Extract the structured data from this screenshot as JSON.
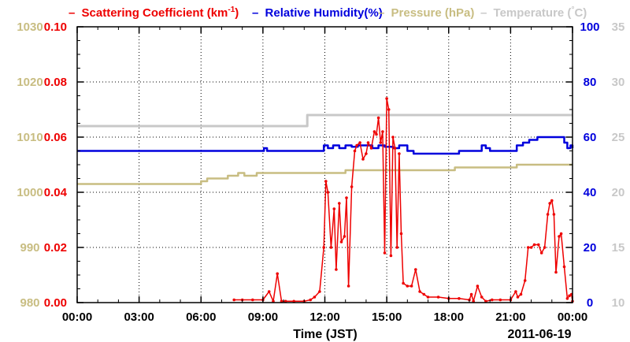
{
  "chart_data": {
    "type": "line",
    "xlabel": "Time (JST)",
    "date_label": "2011-06-19",
    "x_ticks": [
      "00:00",
      "03:00",
      "06:00",
      "09:00",
      "12:00",
      "15:00",
      "18:00",
      "21:00",
      "00:00"
    ],
    "x_range_hours": [
      0,
      24
    ],
    "grid": true,
    "legend_position": "top",
    "colors": {
      "scattering": "#ee0000",
      "humidity": "#0000dd",
      "pressure": "#c8bd82",
      "temperature": "#c8c8c8"
    },
    "axes": {
      "pressure": {
        "range": [
          980,
          1030
        ],
        "ticks": [
          "1030",
          "1020",
          "1010",
          "1000",
          "990",
          "980"
        ]
      },
      "scattering": {
        "range": [
          0,
          0.1
        ],
        "ticks": [
          "0.10",
          "0.08",
          "0.06",
          "0.04",
          "0.02",
          "0.00"
        ]
      },
      "humidity": {
        "range": [
          0,
          100
        ],
        "ticks": [
          "100",
          "80",
          "60",
          "40",
          "20",
          "0"
        ]
      },
      "temperature": {
        "range": [
          10,
          35
        ],
        "ticks": [
          "35",
          "30",
          "25",
          "20",
          "15",
          "10"
        ]
      }
    },
    "series": [
      {
        "name": "Scattering Coefficient (km-1)",
        "legend": {
          "dash": "–",
          "pre": "Scattering Coefficient (km",
          "sup": "-1",
          "post": ")"
        },
        "axis": "scattering",
        "x": [
          7.6,
          8.0,
          8.5,
          9.0,
          9.3,
          9.5,
          9.7,
          9.9,
          10.1,
          10.5,
          11.0,
          11.3,
          11.5,
          11.75,
          11.95,
          12.05,
          12.15,
          12.3,
          12.45,
          12.55,
          12.7,
          12.8,
          12.95,
          13.05,
          13.15,
          13.3,
          13.45,
          13.55,
          13.7,
          13.85,
          14.0,
          14.1,
          14.25,
          14.4,
          14.5,
          14.6,
          14.7,
          14.8,
          14.9,
          15.0,
          15.1,
          15.2,
          15.3,
          15.4,
          15.5,
          15.6,
          15.7,
          15.8,
          16.0,
          16.2,
          16.4,
          16.6,
          16.8,
          17.0,
          17.5,
          18.0,
          18.5,
          19.0,
          19.1,
          19.2,
          19.4,
          19.6,
          19.8,
          20.1,
          20.5,
          21.0,
          21.25,
          21.35,
          21.5,
          21.7,
          21.85,
          22.0,
          22.15,
          22.35,
          22.5,
          22.65,
          22.8,
          22.9,
          23.0,
          23.1,
          23.2,
          23.35,
          23.45,
          23.6,
          23.75,
          23.85,
          23.95,
          24.0
        ],
        "values": [
          0.001,
          0.001,
          0.001,
          0.001,
          0.004,
          0.0005,
          0.0105,
          0.0005,
          0.0005,
          0.0005,
          0.0005,
          0.001,
          0.002,
          0.004,
          0.02,
          0.044,
          0.04,
          0.02,
          0.034,
          0.012,
          0.036,
          0.022,
          0.024,
          0.038,
          0.006,
          0.042,
          0.055,
          0.057,
          0.058,
          0.052,
          0.054,
          0.058,
          0.056,
          0.062,
          0.061,
          0.067,
          0.058,
          0.062,
          0.018,
          0.074,
          0.07,
          0.017,
          0.06,
          0.056,
          0.02,
          0.054,
          0.025,
          0.007,
          0.006,
          0.006,
          0.012,
          0.004,
          0.003,
          0.002,
          0.002,
          0.0015,
          0.0015,
          0.001,
          0.003,
          0.0005,
          0.006,
          0.002,
          0.0005,
          0.001,
          0.001,
          0.001,
          0.004,
          0.002,
          0.003,
          0.008,
          0.02,
          0.02,
          0.021,
          0.021,
          0.018,
          0.02,
          0.032,
          0.036,
          0.037,
          0.032,
          0.011,
          0.024,
          0.025,
          0.013,
          0.0015,
          0.0025,
          0.003,
          0.0005
        ]
      },
      {
        "name": "Relative Humidity(%)",
        "legend": {
          "dash": "–",
          "pre": "Relative Humidity(%)",
          "sup": "",
          "post": ""
        },
        "axis": "humidity",
        "x": [
          0,
          9.0,
          9.05,
          9.15,
          9.2,
          11.8,
          11.95,
          12.15,
          12.4,
          12.7,
          13.0,
          13.3,
          13.6,
          14.0,
          14.3,
          14.6,
          14.9,
          15.3,
          15.6,
          16.0,
          16.3,
          16.8,
          17.5,
          18.5,
          19.5,
          19.6,
          19.8,
          20.0,
          21.0,
          21.3,
          21.6,
          21.9,
          22.3,
          22.8,
          23.2,
          23.4,
          23.6,
          23.75,
          23.9,
          24.0
        ],
        "values": [
          55,
          55,
          56,
          56,
          55,
          55,
          57,
          56,
          57,
          56,
          57,
          56.5,
          57,
          57,
          56,
          57,
          56.5,
          56,
          57,
          55,
          54,
          54,
          54,
          55,
          55,
          57,
          56,
          55,
          55,
          57,
          58,
          59,
          60,
          60,
          60,
          60,
          58,
          56,
          57,
          56
        ]
      },
      {
        "name": "Pressure (hPa)",
        "legend": {
          "dash": "–",
          "pre": "Pressure (hPa)",
          "sup": "",
          "post": ""
        },
        "axis": "pressure",
        "x": [
          0,
          5.8,
          6.0,
          6.3,
          6.7,
          7.3,
          7.6,
          7.8,
          8.1,
          8.5,
          8.7,
          9.1,
          9.6,
          13.0,
          18.0,
          18.3,
          21.0,
          21.3,
          24.0
        ],
        "values": [
          1001.5,
          1001.5,
          1002,
          1002.5,
          1002.5,
          1003,
          1003,
          1003.5,
          1003,
          1003,
          1003.5,
          1003.5,
          1003.5,
          1004,
          1004,
          1004.5,
          1004.5,
          1005,
          1005
        ]
      },
      {
        "name": "Temperature (C)",
        "legend": {
          "dash": "–",
          "pre": "Temperature (",
          "sup": "°",
          "post": "C)"
        },
        "axis": "temperature",
        "x": [
          0,
          11.0,
          11.15,
          24.0
        ],
        "values": [
          26,
          26,
          27,
          27
        ]
      }
    ]
  }
}
